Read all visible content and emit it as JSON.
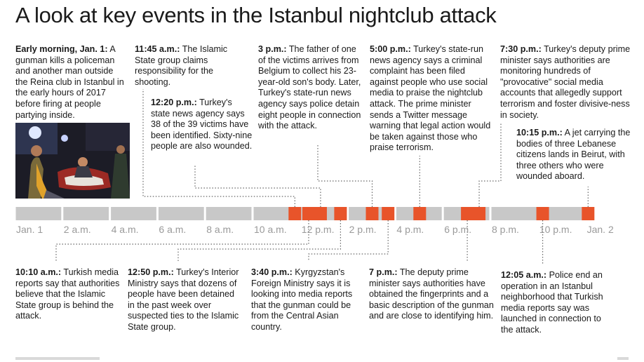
{
  "title": "A look at key events in the Istanbul nightclub attack",
  "colors": {
    "segment": "#c8c8c8",
    "event": "#e8542a",
    "tick_label": "#9a9a9a",
    "connector": "#666666"
  },
  "timeline": {
    "labels": [
      "Jan. 1",
      "2 a.m.",
      "4 a.m.",
      "6 a.m.",
      "8 a.m.",
      "10 a.m.",
      "12 p.m.",
      "2 p.m.",
      "4 p.m.",
      "6 p.m.",
      "8 p.m.",
      "10 p.m.",
      "Jan. 2"
    ],
    "event_hours": [
      11.75,
      12.33,
      12.83,
      13.67,
      15,
      15.67,
      17,
      19,
      19.5,
      22.17,
      24.08
    ]
  },
  "events": {
    "e1": {
      "time": "Early morning, Jan. 1:",
      "text": " A gunman kills a policeman and another man outside the Reina club in Istanbul in the early hours of 2017 before firing at people partying inside."
    },
    "e2": {
      "time": "11:45 a.m.:",
      "text": " The Islamic State group claims responsibility for the shooting."
    },
    "e3": {
      "time": "12:20 p.m.:",
      "text": " Turkey's state news agency says 38 of the 39 victims have been identified. Sixty-nine people are also wounded."
    },
    "e4": {
      "time": "3 p.m.:",
      "text": " The father of one of the victims arrives from Belgium to collect his 23-year-old son's body. Later, Turkey's state-run news agency says police detain eight people in connection with the attack."
    },
    "e5": {
      "time": "5:00 p.m.:",
      "text": " Turkey's state-run news agency says a criminal complaint has been filed against people who use social media to praise the nightclub attack. The prime minister sends a Twitter message warning that legal action would be taken against those who praise terrorism."
    },
    "e6": {
      "time": "7:30 p.m.:",
      "text": " Turkey's deputy prime minister says authorities are monitoring hundreds of \"provocative\" social media accounts that allegedly support terrorism and foster divisive-ness in society."
    },
    "e7": {
      "time": "10:15 p.m.:",
      "text": " A jet carrying the bodies of three Lebanese citizens lands in Beirut, with three others who were wounded aboard."
    },
    "e8": {
      "time": "10:10 a.m.:",
      "text": " Turkish media reports say that authorities believe that the Islamic State group is behind the attack."
    },
    "e9": {
      "time": "12:50 p.m.:",
      "text": " Turkey's Interior Ministry says that dozens of people have been detained in the past week over suspected ties to the Islamic State group."
    },
    "e10": {
      "time": "3:40 p.m.:",
      "text": " Kyrgyzstan's Foreign Ministry says it is looking into media reports that the gunman could be from the Central Asian country."
    },
    "e11": {
      "time": "7 p.m.:",
      "text": " The deputy prime minister says authorities have obtained the fingerprints and a basic description of the gunman and are close to identifying him."
    },
    "e12": {
      "time": "12:05 a.m.:",
      "text": " Police end an operation in an Istanbul neighborhood that Turkish media reports say was launched in connection to the attack."
    }
  }
}
